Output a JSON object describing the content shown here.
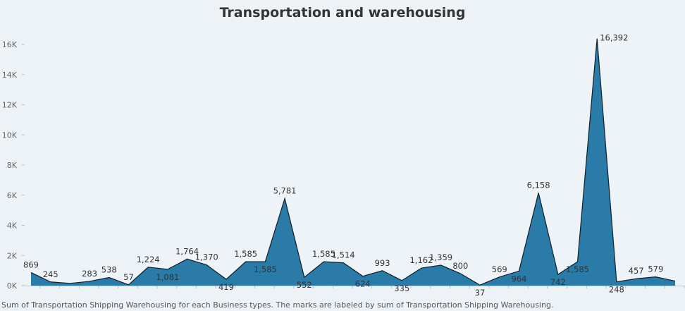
{
  "title": "Transportation and warehousing",
  "footer": "Sum of Transportation Shipping Warehousing for each Business types.  The marks are labeled by sum of Transportation Shipping Warehousing.",
  "colors": {
    "area_fill": "#2a7ba7",
    "area_stroke": "#0f1f2b",
    "background": "#edf2f7",
    "plot_bg": "#eef3f8"
  },
  "chart_data": {
    "type": "area",
    "title": "Transportation and warehousing",
    "xlabel": "",
    "ylabel": "",
    "ylim": [
      0,
      17000
    ],
    "yticks": [
      0,
      2000,
      4000,
      6000,
      8000,
      10000,
      12000,
      14000,
      16000
    ],
    "ytick_labels": [
      "0K",
      "2K",
      "4K",
      "6K",
      "8K",
      "10K",
      "12K",
      "14K",
      "16K"
    ],
    "grid": false,
    "legend": "none",
    "values": [
      869,
      245,
      150,
      283,
      538,
      57,
      1224,
      1081,
      1764,
      1370,
      419,
      1585,
      1585,
      5781,
      552,
      1585,
      1514,
      624,
      993,
      335,
      1162,
      1359,
      800,
      37,
      569,
      964,
      6158,
      742,
      1585,
      16392,
      248,
      457,
      579,
      300
    ],
    "labels": [
      "869",
      "245",
      "",
      "283",
      "538",
      "57",
      "1,224",
      "1,081",
      "1,764",
      "1,370",
      "419",
      "1,585",
      "1,585",
      "5,781",
      "552",
      "1,585",
      "1,514",
      "624",
      "993",
      "335",
      "1,162",
      "1,359",
      "800",
      "37",
      "569",
      "964",
      "6,158",
      "742",
      "1,585",
      "16,392",
      "248",
      "457",
      "579",
      ""
    ],
    "label_placement": [
      "above",
      "above",
      "",
      "above",
      "above",
      "above",
      "above",
      "below",
      "above",
      "above",
      "below",
      "above",
      "below",
      "above",
      "below",
      "above",
      "above",
      "below",
      "above",
      "below",
      "above",
      "above",
      "above",
      "below",
      "above",
      "below",
      "above",
      "below",
      "below",
      "right",
      "below",
      "above",
      "above",
      ""
    ]
  }
}
